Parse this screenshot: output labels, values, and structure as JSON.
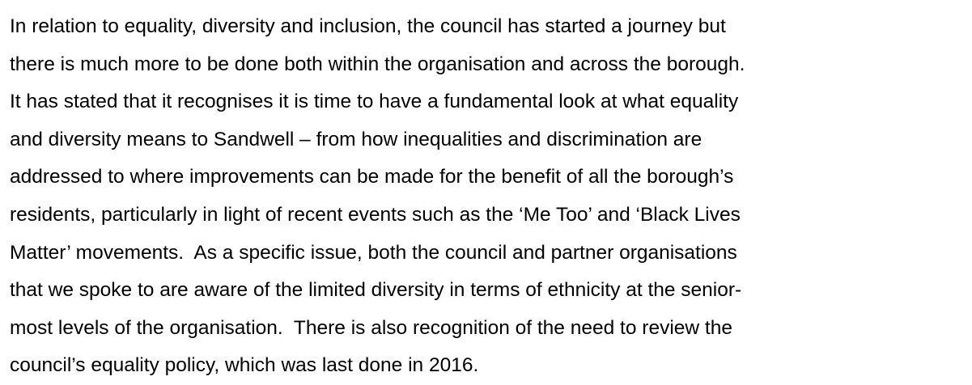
{
  "paragraph": {
    "lines": [
      "In relation to equality, diversity and inclusion, the council has started a journey but",
      "there is much more to be done both within the organisation and across the borough.",
      "It has stated that it recognises it is time to have a fundamental look at what equality",
      "and diversity means to Sandwell – from how inequalities and discrimination are",
      "addressed to where improvements can be made for the benefit of all the borough’s",
      "residents, particularly in light of recent events such as the ‘Me Too’ and ‘Black Lives",
      "Matter’ movements.  As a specific issue, both the council and partner organisations",
      "that we spoke to are aware of the limited diversity in terms of ethnicity at the senior-",
      "most levels of the organisation.  There is also recognition of the need to review the",
      "council’s equality policy, which was last done in 2016."
    ]
  }
}
